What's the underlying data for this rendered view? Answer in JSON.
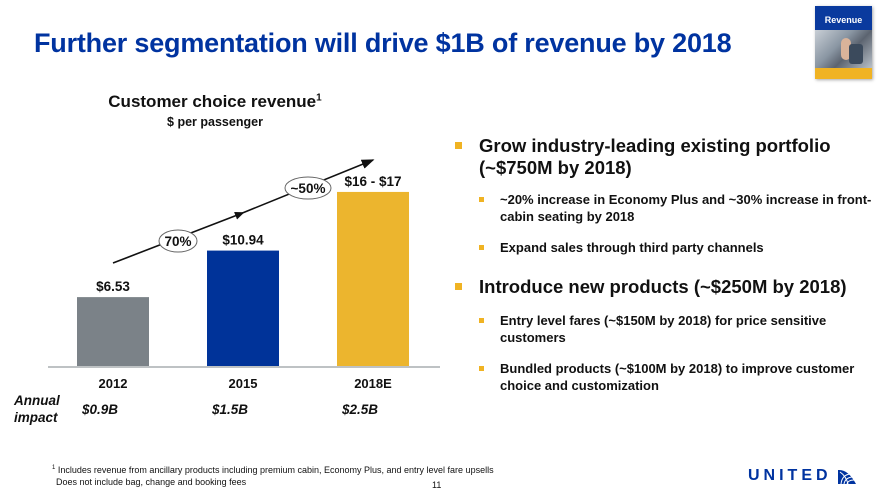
{
  "slide": {
    "title": "Further segmentation will drive $1B of revenue by 2018",
    "badge_label": "Revenue",
    "page_number": "11",
    "logo_text": "UNITED",
    "colors": {
      "title_blue": "#0033a0",
      "bullet_gold": "#f0b323"
    }
  },
  "chart_data": {
    "type": "bar",
    "title": "Customer choice revenue",
    "title_superscript": "1",
    "subtitle": "$ per passenger",
    "xlabel": "",
    "ylabel": "$ per passenger",
    "categories": [
      "2012",
      "2015",
      "2018E"
    ],
    "values": [
      6.53,
      10.94,
      16.5
    ],
    "value_labels": [
      "$6.53",
      "$10.94",
      "$16 - $17"
    ],
    "value_ranges": [
      null,
      null,
      [
        16,
        17
      ]
    ],
    "bar_colors": [
      "#7b8288",
      "#003399",
      "#ecb52e"
    ],
    "ylim": [
      0,
      18
    ],
    "grid": false,
    "growth_annotations": [
      {
        "from": "2012",
        "to": "2015",
        "label": "70%"
      },
      {
        "from": "2015",
        "to": "2018E",
        "label": "~50%"
      }
    ],
    "annual_impact": {
      "label_line1": "Annual",
      "label_line2": "impact",
      "values": [
        "$0.9B",
        "$1.5B",
        "$2.5B"
      ]
    }
  },
  "bullets": [
    {
      "text": "Grow industry-leading existing portfolio (~$750M by 2018)",
      "sub": [
        "~20% increase in Economy Plus and ~30% increase in front-cabin seating by 2018",
        "Expand sales through third party channels"
      ]
    },
    {
      "text": "Introduce new products (~$250M by 2018)",
      "sub": [
        "Entry level fares (~$150M by 2018) for price sensitive customers",
        "Bundled products (~$100M by 2018) to improve customer choice and customization"
      ]
    }
  ],
  "footnote": {
    "marker": "1",
    "line1": "Includes revenue from ancillary products including premium cabin, Economy Plus, and entry level fare upsells",
    "line2": "Does not include bag, change and booking fees"
  }
}
